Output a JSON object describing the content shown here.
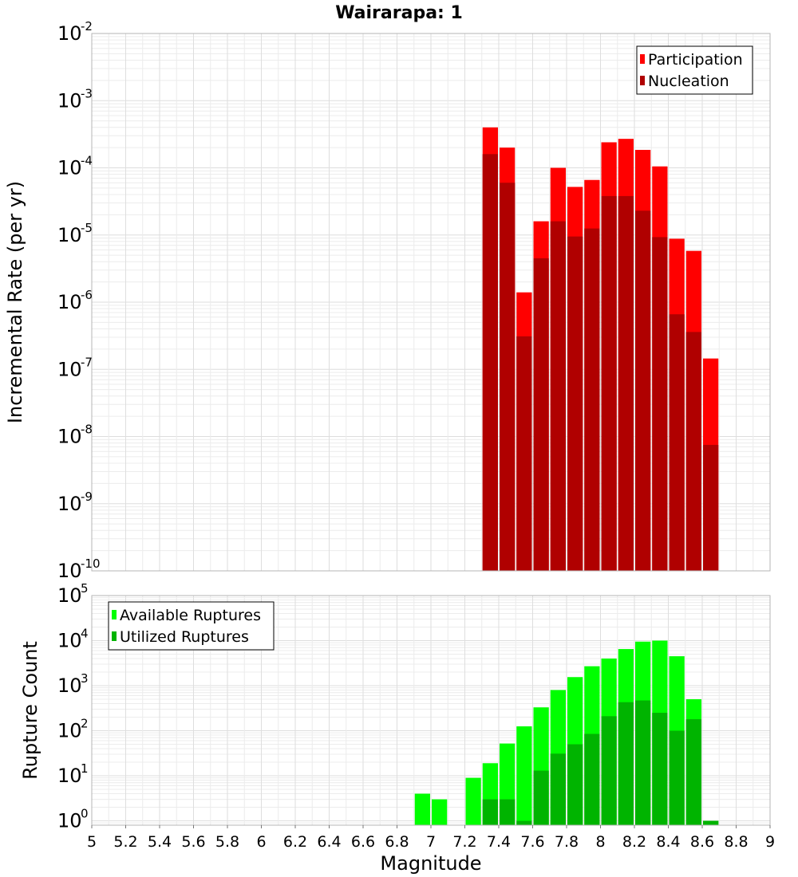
{
  "title": "Wairarapa: 1",
  "colors": {
    "participation": "#ff0000",
    "nucleation": "#b00000",
    "available": "#00ff00",
    "utilized": "#00b400"
  },
  "chart_data": [
    {
      "type": "bar",
      "scale": "log",
      "ylabel": "Incremental Rate (per yr)",
      "ylim": [
        1e-10,
        0.01
      ],
      "xlim": [
        5,
        9
      ],
      "bin_width": 0.1,
      "legend_position": "top-right",
      "series": [
        {
          "name": "Participation",
          "color": "#ff0000",
          "x": [
            7.35,
            7.45,
            7.55,
            7.65,
            7.75,
            7.85,
            7.95,
            8.05,
            8.15,
            8.25,
            8.35,
            8.45,
            8.55,
            8.65
          ],
          "values": [
            0.0004,
            0.0002,
            1.4e-06,
            1.6e-05,
            0.0001,
            5.2e-05,
            6.6e-05,
            0.00024,
            0.00027,
            0.000185,
            0.000105,
            8.8e-06,
            5.8e-06,
            1.45e-07
          ]
        },
        {
          "name": "Nucleation",
          "color": "#b00000",
          "x": [
            7.35,
            7.45,
            7.55,
            7.65,
            7.75,
            7.85,
            7.95,
            8.05,
            8.15,
            8.25,
            8.35,
            8.45,
            8.55,
            8.65
          ],
          "values": [
            0.00016,
            6e-05,
            3.1e-07,
            4.5e-06,
            1.6e-05,
            9.5e-06,
            1.25e-05,
            3.8e-05,
            3.8e-05,
            2.3e-05,
            9.3e-06,
            6.6e-07,
            3.6e-07,
            7.5e-09
          ]
        }
      ]
    },
    {
      "type": "bar",
      "scale": "log",
      "xlabel": "Magnitude",
      "ylabel": "Rupture Count",
      "ylim": [
        0.8,
        100000
      ],
      "xlim": [
        5,
        9
      ],
      "bin_width": 0.1,
      "legend_position": "top-left",
      "x_ticks": [
        "5",
        "5.2",
        "5.4",
        "5.6",
        "5.8",
        "6",
        "6.2",
        "6.4",
        "6.6",
        "6.8",
        "7",
        "7.2",
        "7.4",
        "7.6",
        "7.8",
        "8",
        "8.2",
        "8.4",
        "8.6",
        "8.8",
        "9"
      ],
      "series": [
        {
          "name": "Available Ruptures",
          "color": "#00ff00",
          "x": [
            6.95,
            7.05,
            7.25,
            7.35,
            7.45,
            7.55,
            7.65,
            7.75,
            7.85,
            7.95,
            8.05,
            8.15,
            8.25,
            8.35,
            8.45,
            8.55,
            8.65
          ],
          "values": [
            4,
            3,
            9,
            19,
            52,
            125,
            330,
            800,
            1550,
            2700,
            4000,
            6500,
            9500,
            10000,
            4500,
            500,
            1
          ]
        },
        {
          "name": "Utilized Ruptures",
          "color": "#00b400",
          "x": [
            7.35,
            7.45,
            7.55,
            7.65,
            7.75,
            7.85,
            7.95,
            8.05,
            8.15,
            8.25,
            8.35,
            8.45,
            8.55,
            8.65
          ],
          "values": [
            3,
            3,
            1,
            13,
            31,
            50,
            85,
            210,
            430,
            470,
            250,
            100,
            180,
            1
          ]
        }
      ]
    }
  ]
}
